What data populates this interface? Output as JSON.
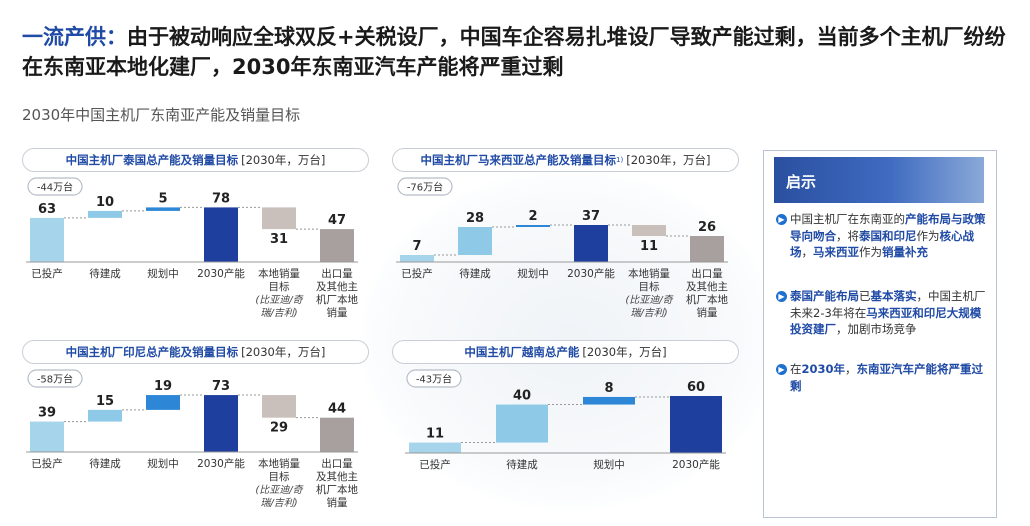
{
  "headline": {
    "lead": "一流产供：",
    "rest": "由于被动响应全球双反+关税设厂，中国车企容易扎堆设厂导致产能过剩，当前多个主机厂纷纷在东南亚本地化建厂，2030年东南亚汽车产能将严重过剩"
  },
  "subtitle": "2030年中国主机厂东南亚产能及销量目标",
  "units": "[2030年，万台]",
  "colors": {
    "built": "#a6d4ea",
    "pending": "#8ec9e8",
    "planned": "#2d86d6",
    "total": "#1f3f9e",
    "local": "#c9bfbb",
    "export": "#a8a09e",
    "connector": "#999999"
  },
  "chart_data": [
    {
      "type": "bar",
      "title": "中国主机厂泰国总产能及销量目标",
      "badge": "-44万台",
      "categories": [
        "已投产",
        "待建成",
        "规划中",
        "2030产能",
        "本地销量目标",
        "出口量及其他主机厂本地销量"
      ],
      "category_lines": [
        [
          "已投产"
        ],
        [
          "待建成"
        ],
        [
          "规划中"
        ],
        [
          "2030产能"
        ],
        [
          "本地销量",
          "目标"
        ],
        [
          "出口量",
          "及其他主",
          "机厂本地",
          "销量"
        ]
      ],
      "note": [
        "(比亚迪/奇",
        "瑞/吉利)"
      ],
      "values": [
        63,
        10,
        5,
        78,
        31,
        47
      ]
    },
    {
      "type": "bar",
      "title": "中国主机厂马来西亚总产能及销量目标",
      "title_sup": "1)",
      "badge": "-76万台",
      "categories": [
        "已投产",
        "待建成",
        "规划中",
        "2030产能",
        "本地销量目标",
        "出口量及其他主机厂本地销量"
      ],
      "category_lines": [
        [
          "已投产"
        ],
        [
          "待建成"
        ],
        [
          "规划中"
        ],
        [
          "2030产能"
        ],
        [
          "本地销量",
          "目标"
        ],
        [
          "出口量",
          "及其他主",
          "机厂本地",
          "销量"
        ]
      ],
      "note": [
        "(比亚迪/奇",
        "瑞/吉利)"
      ],
      "values": [
        7,
        28,
        2,
        37,
        11,
        26
      ]
    },
    {
      "type": "bar",
      "title": "中国主机厂印尼总产能及销量目标",
      "badge": "-58万台",
      "categories": [
        "已投产",
        "待建成",
        "规划中",
        "2030产能",
        "本地销量目标",
        "出口量及其他主机厂本地销量"
      ],
      "category_lines": [
        [
          "已投产"
        ],
        [
          "待建成"
        ],
        [
          "规划中"
        ],
        [
          "2030产能"
        ],
        [
          "本地销量",
          "目标"
        ],
        [
          "出口量",
          "及其他主",
          "机厂本地",
          "销量"
        ]
      ],
      "note": [
        "(比亚迪/奇",
        "瑞/吉利)"
      ],
      "values": [
        39,
        15,
        19,
        73,
        29,
        44
      ]
    },
    {
      "type": "bar",
      "title": "中国主机厂越南总产能",
      "badge": "-43万台",
      "categories": [
        "已投产",
        "待建成",
        "规划中",
        "2030产能"
      ],
      "category_lines": [
        [
          "已投产"
        ],
        [
          "待建成"
        ],
        [
          "规划中"
        ],
        [
          "2030产能"
        ]
      ],
      "values": [
        11,
        40,
        8,
        60
      ]
    }
  ],
  "insight": {
    "title": "启示",
    "bullets": [
      {
        "parts": [
          [
            "中国主机厂在东南亚的",
            false
          ],
          [
            "产能布局与政策导向吻合",
            true
          ],
          [
            "，将",
            false
          ],
          [
            "泰国和印尼",
            true
          ],
          [
            "作为",
            false
          ],
          [
            "核心战场",
            true
          ],
          [
            "，",
            false
          ],
          [
            "马来西亚",
            true
          ],
          [
            "作为",
            false
          ],
          [
            "销量补充",
            true
          ]
        ]
      },
      {
        "parts": [
          [
            "泰国产能布局",
            true
          ],
          [
            "已",
            false
          ],
          [
            "基本落实",
            true
          ],
          [
            "，中国主机厂未来2-3年将在",
            false
          ],
          [
            "马来西亚和印尼大规模投资建厂",
            true
          ],
          [
            "，加剧市场竞争",
            false
          ]
        ]
      },
      {
        "parts": [
          [
            "在",
            false
          ],
          [
            "2030年",
            true
          ],
          [
            "，",
            false
          ],
          [
            "东南亚汽车产能将严重过剩",
            true
          ]
        ]
      }
    ]
  }
}
